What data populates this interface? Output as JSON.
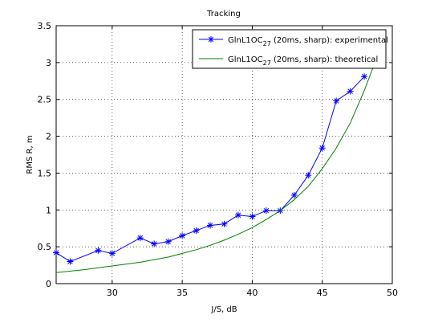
{
  "chart_data": {
    "type": "line",
    "title": "Tracking",
    "xlabel": "J/S, dB",
    "ylabel": "RMS R, m",
    "xlim": [
      26,
      50
    ],
    "ylim": [
      0,
      3.5
    ],
    "xticks": [
      30,
      35,
      40,
      45,
      50
    ],
    "yticks": [
      0,
      0.5,
      1,
      1.5,
      2,
      2.5,
      3,
      3.5
    ],
    "grid": true,
    "legend_position": "top-right",
    "series": [
      {
        "name_main": "GlnL1OC",
        "name_sub": "27",
        "name_rest": " (20ms, sharp): experimental",
        "color": "#0000ff",
        "marker": "asterisk",
        "x": [
          26,
          27,
          29,
          30,
          32,
          33,
          34,
          35,
          36,
          37,
          38,
          39,
          40,
          41,
          42,
          43,
          44,
          45,
          46,
          47,
          48
        ],
        "y": [
          0.42,
          0.3,
          0.45,
          0.41,
          0.62,
          0.54,
          0.57,
          0.65,
          0.72,
          0.79,
          0.81,
          0.93,
          0.91,
          0.99,
          0.99,
          1.2,
          1.47,
          1.84,
          2.48,
          2.61,
          2.81
        ]
      },
      {
        "name_main": "GlnL1OC",
        "name_sub": "27",
        "name_rest": " (20ms, sharp): theoretical",
        "color": "#008000",
        "marker": "none",
        "x": [
          26,
          28,
          30,
          32,
          34,
          35,
          36,
          37,
          38,
          39,
          40,
          41,
          42,
          43,
          44,
          45,
          46,
          47,
          48,
          49
        ],
        "y": [
          0.15,
          0.19,
          0.24,
          0.29,
          0.36,
          0.41,
          0.46,
          0.52,
          0.59,
          0.67,
          0.76,
          0.87,
          0.99,
          1.14,
          1.32,
          1.56,
          1.84,
          2.18,
          2.62,
          3.12
        ]
      }
    ]
  }
}
